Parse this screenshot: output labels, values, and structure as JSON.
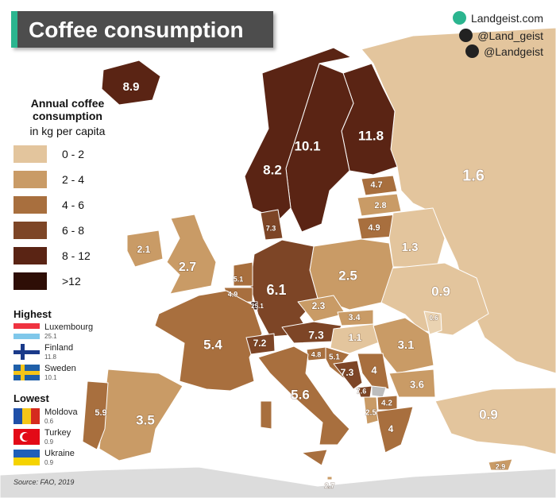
{
  "header": {
    "title": "Coffee consumption",
    "website": "Landgeist.com",
    "instagram": "@Land_geist",
    "twitter": "@Landgeist"
  },
  "legend": {
    "title": "Annual coffee consumption",
    "subtitle": "in kg per capita",
    "items": [
      "0 - 2",
      "2 - 4",
      "4 - 6",
      "6 - 8",
      "8 - 12",
      ">12"
    ]
  },
  "highest": {
    "title": "Highest",
    "items": [
      {
        "country": "Luxembourg",
        "value": 25.1
      },
      {
        "country": "Finland",
        "value": 11.8
      },
      {
        "country": "Sweden",
        "value": 10.1
      }
    ]
  },
  "lowest": {
    "title": "Lowest",
    "items": [
      {
        "country": "Moldova",
        "value": 0.6
      },
      {
        "country": "Turkey",
        "value": 0.9
      },
      {
        "country": "Ukraine",
        "value": 0.9
      }
    ]
  },
  "map": {
    "labels": [
      8.9,
      8.2,
      10.1,
      11.8,
      1.6,
      4.7,
      2.8,
      4.9,
      1.3,
      7.3,
      2.1,
      2.7,
      5.1,
      4.9,
      25.1,
      6.1,
      2.5,
      0.9,
      0.6,
      2.3,
      3.4,
      1.1,
      3.1,
      7.3,
      7.2,
      4.8,
      5.1,
      5.4,
      7.3,
      4,
      3.6,
      7.6,
      4.2,
      2.5,
      4,
      5.6,
      5.9,
      3.5,
      0.9,
      2.9,
      2.7
    ]
  },
  "source": "Source: FAO, 2019"
}
